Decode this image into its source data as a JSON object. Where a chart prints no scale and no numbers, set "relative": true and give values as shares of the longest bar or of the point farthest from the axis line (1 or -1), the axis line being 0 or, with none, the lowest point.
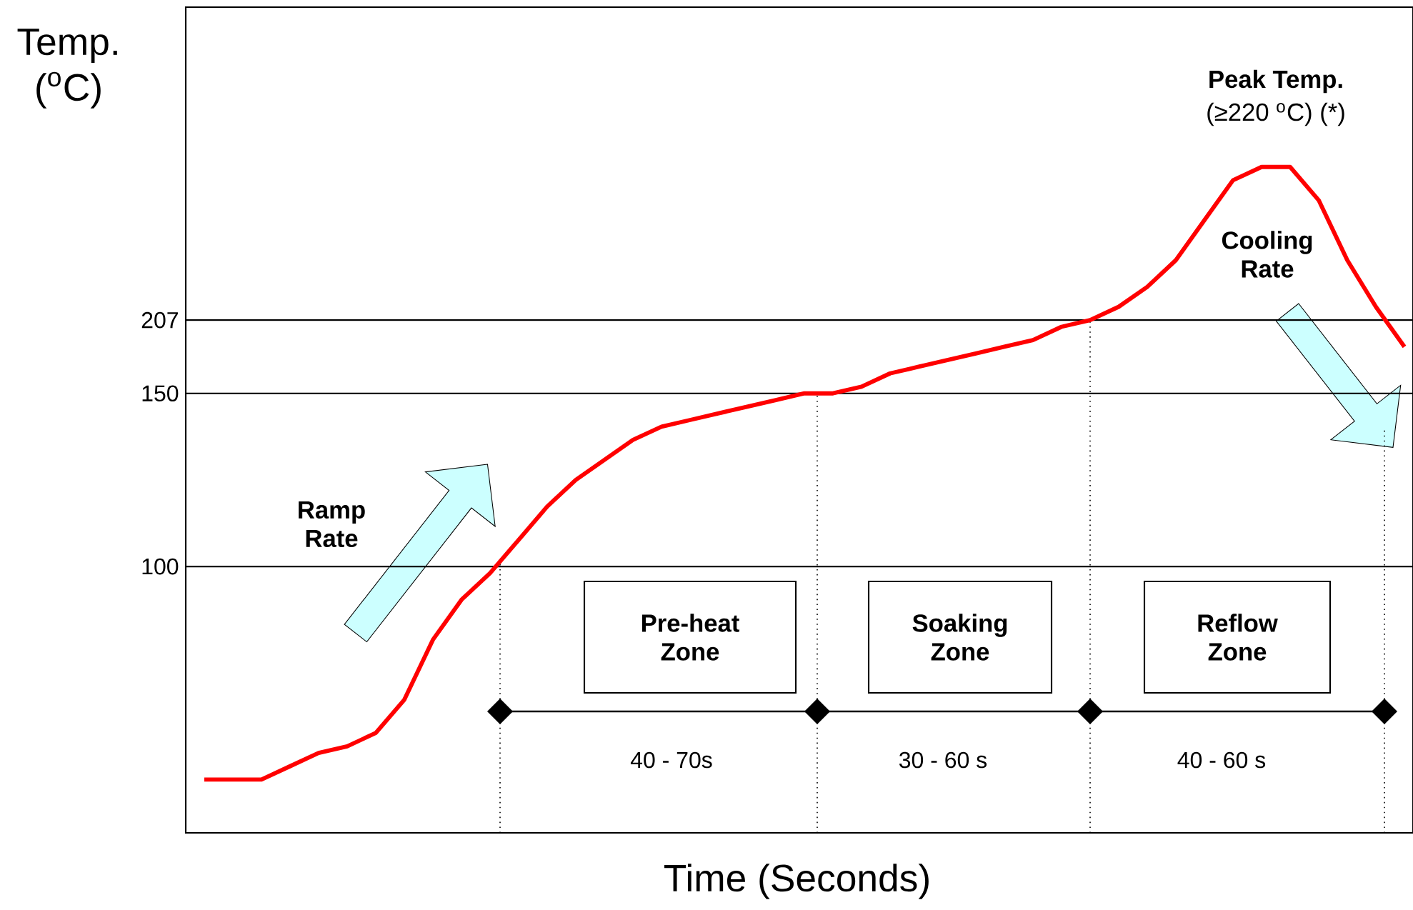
{
  "chart_data": {
    "type": "line",
    "relative": true,
    "xlabel": "Time (Seconds)",
    "ylabel": "Temp. ($^{o}$C)",
    "categories": [
      null,
      null,
      null,
      null,
      null,
      null,
      null,
      null,
      null,
      null,
      null,
      null,
      null,
      null,
      null,
      null,
      null,
      null,
      null,
      null,
      null,
      null,
      null,
      null,
      null,
      null,
      null,
      null,
      null,
      null,
      null,
      null,
      null,
      null,
      null,
      null,
      null,
      null,
      null,
      null,
      null,
      null,
      null
    ],
    "series": [
      {
        "color": "#ff0000",
        "values": [
          0.08,
          0.08,
          0.08,
          0.1,
          0.12,
          0.13,
          0.15,
          0.2,
          0.29,
          0.35,
          0.39,
          0.44,
          0.49,
          0.53,
          0.56,
          0.59,
          0.61,
          0.62,
          0.63,
          0.64,
          0.65,
          0.66,
          0.66,
          0.67,
          0.69,
          0.7,
          0.71,
          0.72,
          0.73,
          0.74,
          0.76,
          0.77,
          0.79,
          0.82,
          0.86,
          0.92,
          0.98,
          1.0,
          1.0,
          0.95,
          0.86,
          0.79,
          0.73
        ]
      }
    ],
    "ref_lines": [
      {
        "axis": "y",
        "value": 0.4,
        "color": "#000000",
        "line_style": "solid"
      },
      {
        "axis": "y",
        "value": 0.66,
        "color": "#000000",
        "line_style": "solid"
      },
      {
        "axis": "y",
        "value": 0.77,
        "color": "#000000",
        "line_style": "solid"
      }
    ],
    "annotations": [
      "Peak Temp.",
      "(≥220 $^{o}$C) (*)",
      "Ramp Rate",
      "Cooling Rate",
      "Pre-heat Zone",
      "Soaking Zone",
      "Reflow Zone",
      "40 - 70s",
      "30 - 60 s",
      "40 - 60 s",
      "100",
      "150",
      "207"
    ]
  }
}
